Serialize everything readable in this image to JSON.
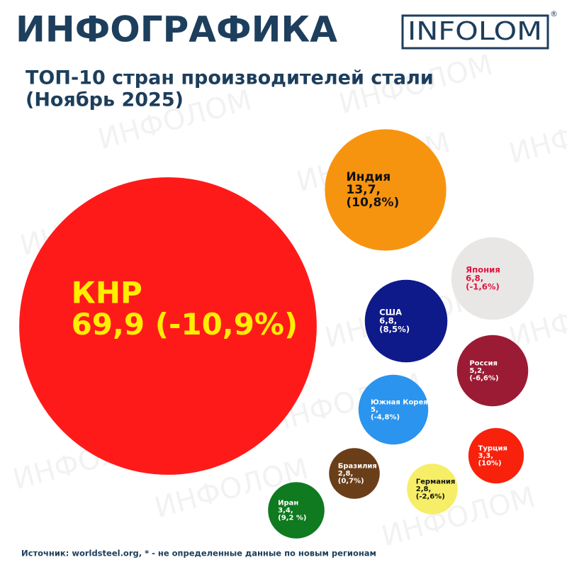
{
  "chart_data": {
    "type": "bubble",
    "header": "ИНФОГРАФИКА",
    "logo": "INFOLOM",
    "logo_mark": "®",
    "title": "ТОП-10 стран производителей стали",
    "subtitle": "(Ноябрь 2025)",
    "watermark": "ИНФОЛОМ",
    "source": "Источник: worldsteel.org,  * - не определенные данные по новым регионам",
    "categories": [
      "КНР",
      "Индия",
      "Япония",
      "США",
      "Россия",
      "Южная Корея",
      "Турция",
      "Бразилия",
      "Германия",
      "Иран"
    ],
    "values": [
      69.9,
      13.7,
      6.8,
      6.8,
      5.2,
      5,
      3.3,
      2.8,
      2.8,
      3.4
    ],
    "value_labels": [
      "69,9",
      "13,7,",
      "6,8,",
      "6,8,",
      "5,2,",
      "5,",
      "3,3,",
      "2,8,",
      "2,8,",
      "3,4,"
    ],
    "changes": [
      -10.9,
      10.8,
      -1.6,
      8.5,
      -6.6,
      -4.8,
      10,
      0.7,
      -2.6,
      9.2
    ],
    "change_labels": [
      "(-10,9%)",
      "(10,8%)",
      "(-1,6%)",
      "(8,5%)",
      "(-6,6%)",
      "(-4,8%)",
      "(10%)",
      "(0,7%)",
      "(-2,6%)",
      "(9,2 %)"
    ],
    "colors": [
      "#ff1a1a",
      "#f7940f",
      "#e9e7e6",
      "#0e1a8a",
      "#9c1b34",
      "#2b94ee",
      "#f8210c",
      "#6b3e1a",
      "#f6ee66",
      "#0f7a1f"
    ],
    "label_colors": [
      "#ffee00",
      "#111111",
      "#e0143c",
      "#ffffff",
      "#ffffff",
      "#ffffff",
      "#ffffff",
      "#ffffff",
      "#111111",
      "#ffffff"
    ]
  }
}
